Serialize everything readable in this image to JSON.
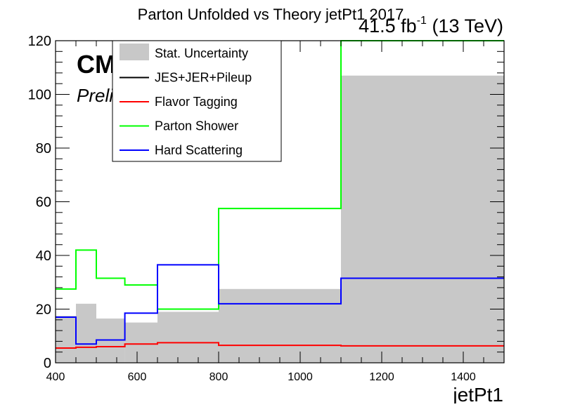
{
  "chart_data": {
    "type": "step",
    "title": "Parton Unfolded vs Theory jetPt1 2017",
    "lumi_label": "41.5 fb",
    "lumi_sup": "-1",
    "energy_label": " (13 TeV)",
    "cms_label": "CMS",
    "preliminary_label": "Preliminary",
    "xlabel": "jetPt1",
    "ylabel": "",
    "xlim": [
      400,
      1500
    ],
    "ylim": [
      0,
      120
    ],
    "x_ticks": [
      400,
      600,
      800,
      1000,
      1200,
      1400
    ],
    "x_tick_labels": [
      "400",
      "600",
      "800",
      "1000",
      "1200",
      "1400"
    ],
    "y_ticks": [
      0,
      20,
      40,
      60,
      80,
      100,
      120
    ],
    "y_tick_labels": [
      "0",
      "20",
      "40",
      "60",
      "80",
      "100",
      "120"
    ],
    "bin_edges": [
      400,
      450,
      500,
      570,
      650,
      800,
      1100,
      1500
    ],
    "stat_uncertainty": {
      "name": "Stat. Uncertainty",
      "color": "#c8c8c8",
      "values": [
        17.5,
        22,
        16.5,
        15,
        19,
        27.5,
        107
      ]
    },
    "series": [
      {
        "name": "JES+JER+Pileup",
        "color": "#000000",
        "values": [
          0,
          0,
          0,
          0,
          0,
          0,
          0
        ]
      },
      {
        "name": "Flavor Tagging",
        "color": "#ff0000",
        "values": [
          5.5,
          5.8,
          6.0,
          7.0,
          7.5,
          6.5,
          6.3
        ]
      },
      {
        "name": "Parton Shower",
        "color": "#00ff00",
        "values": [
          27.5,
          42,
          31.5,
          29,
          20,
          57.5,
          120
        ]
      },
      {
        "name": "Hard Scattering",
        "color": "#0000ff",
        "values": [
          17,
          7,
          8.5,
          18.5,
          36.5,
          22,
          31.5
        ]
      }
    ],
    "legend_position": "top-left"
  }
}
